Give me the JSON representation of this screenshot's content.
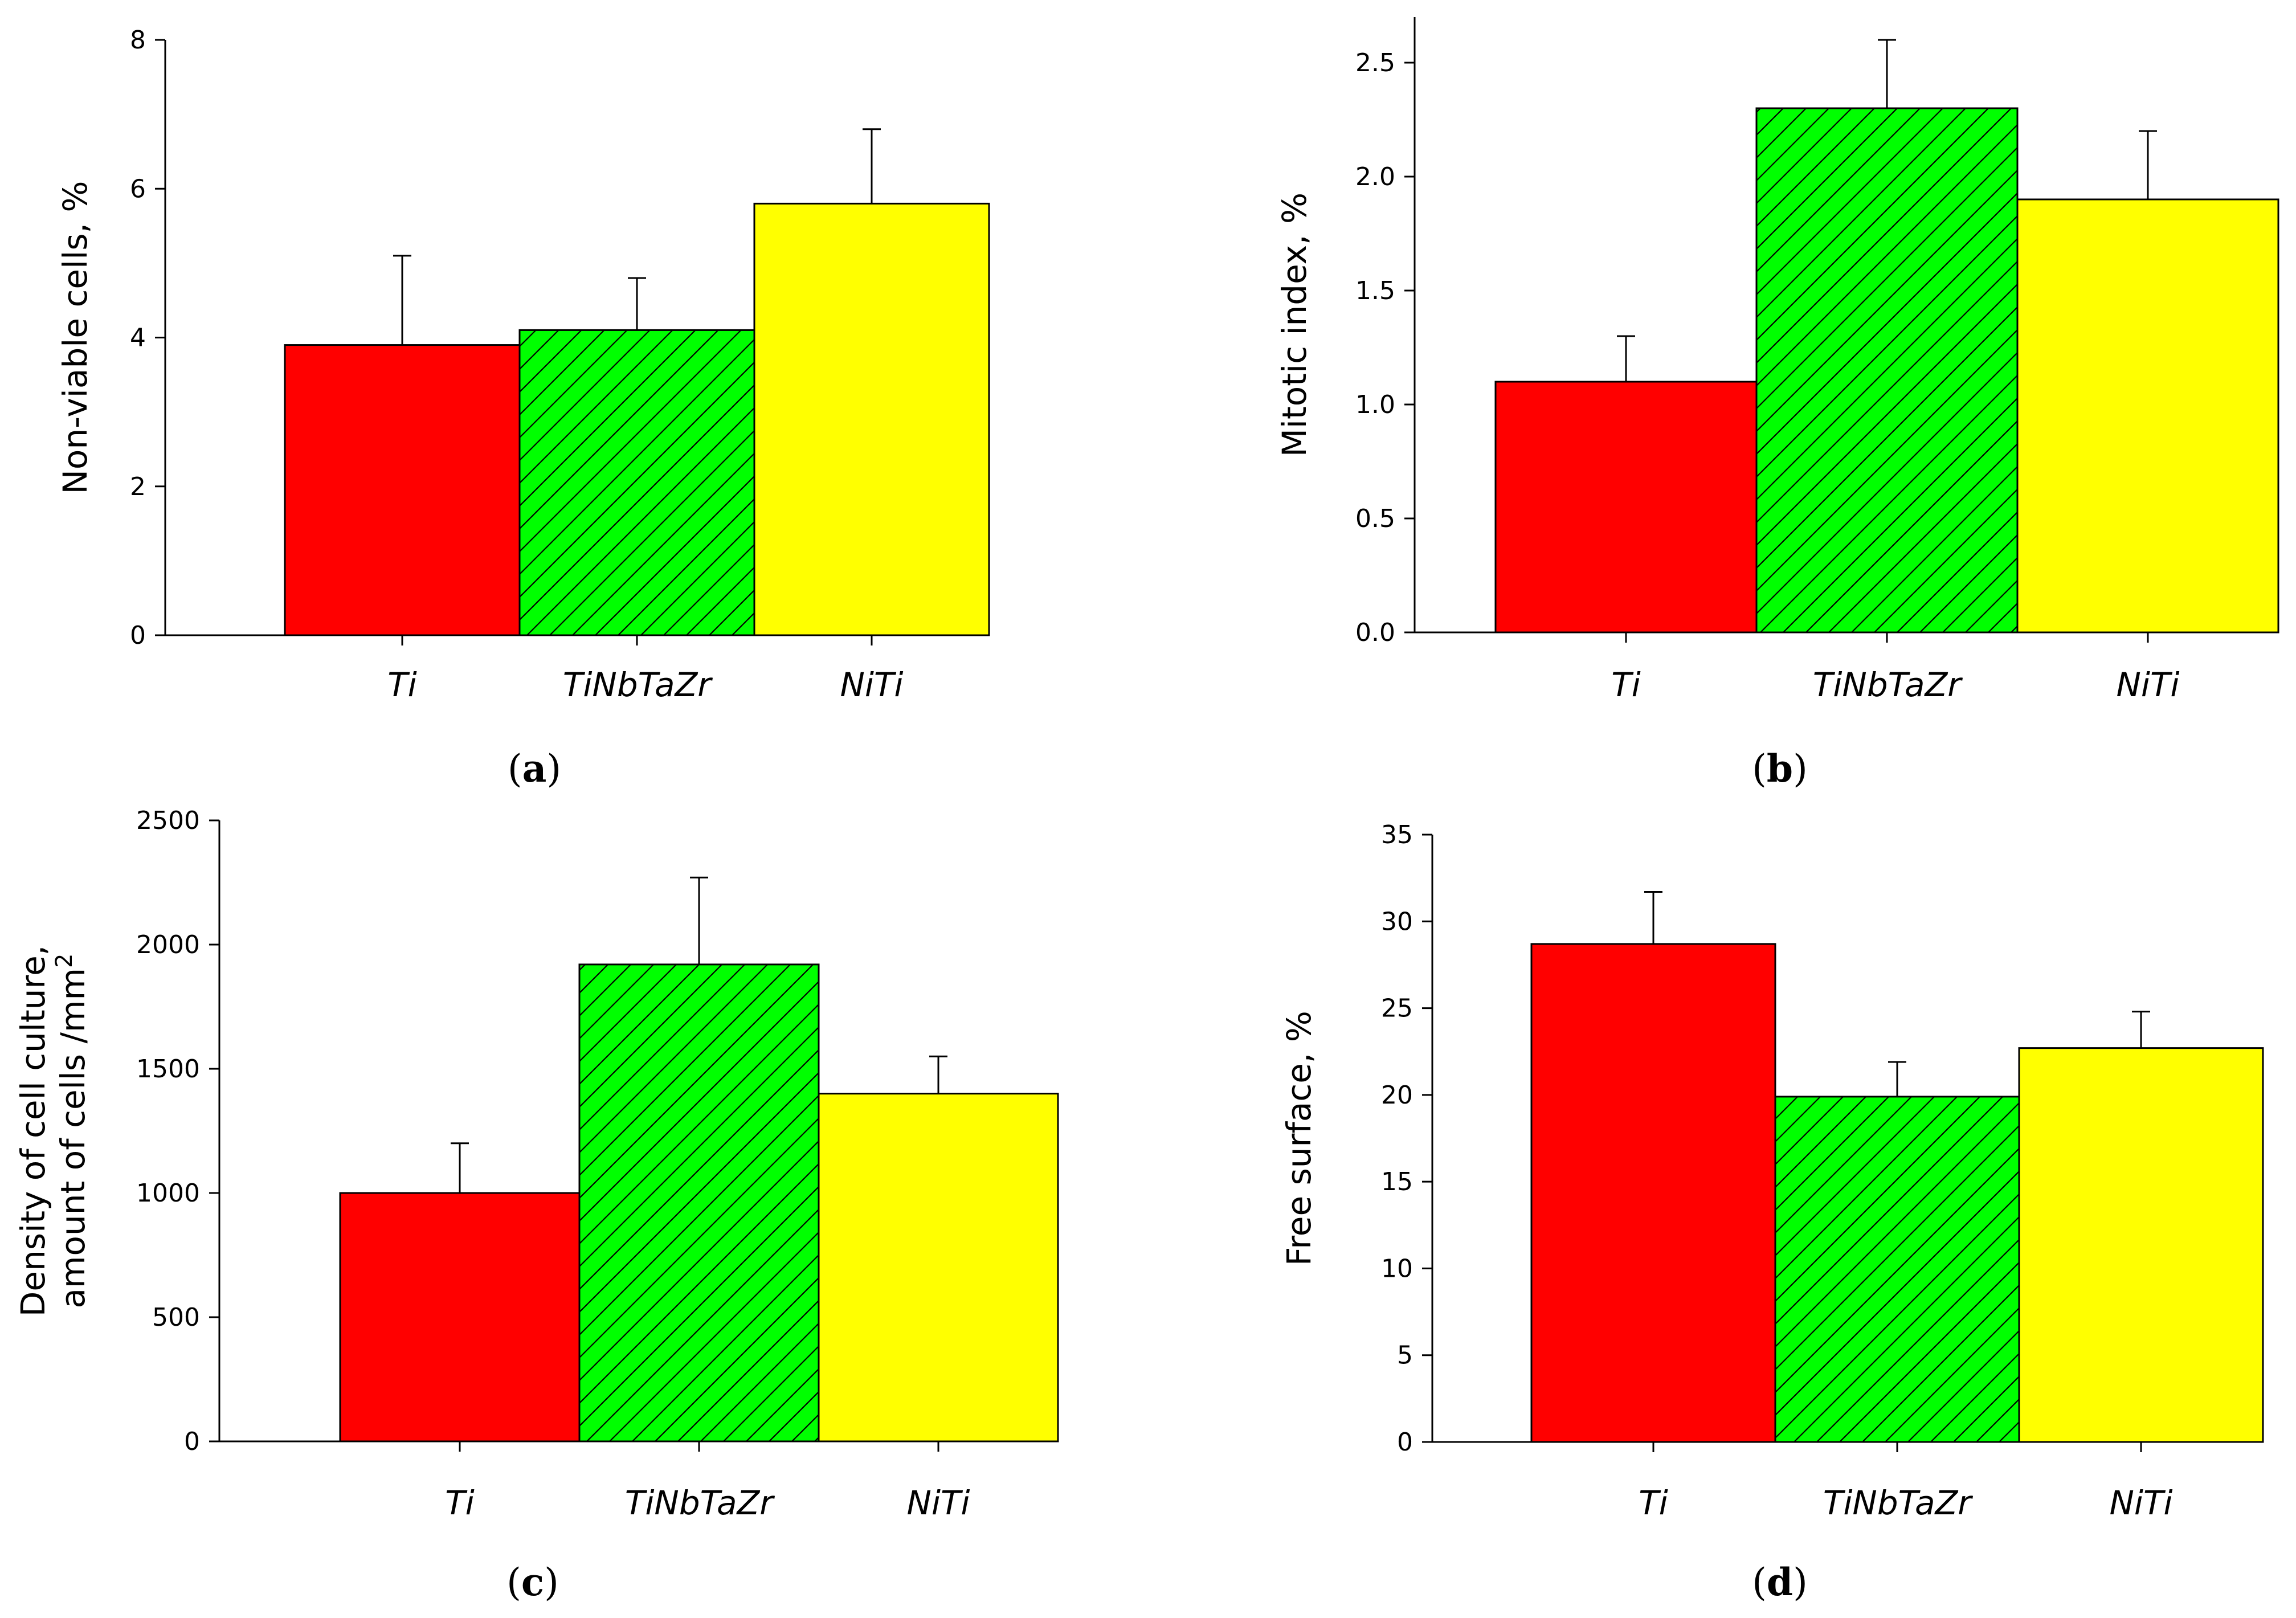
{
  "chart_data": [
    {
      "type": "bar",
      "panel": "a",
      "categories": [
        "Ti",
        "TiNbTaZr",
        "NiTi"
      ],
      "values": [
        3.9,
        4.1,
        5.8
      ],
      "errors": [
        1.2,
        0.7,
        1.0
      ],
      "ylabel": "Non-viable cells, %",
      "ylim": [
        0,
        8
      ],
      "yticks": [
        "0",
        "2",
        "4",
        "6",
        "8"
      ],
      "caption_open": "(",
      "caption_letter": "a",
      "caption_close": ")",
      "colors": [
        "#ff0000",
        "#00ff00",
        "#ffff00"
      ],
      "hatched": [
        false,
        true,
        false
      ]
    },
    {
      "type": "bar",
      "panel": "b",
      "categories": [
        "Ti",
        "TiNbTaZr",
        "NiTi"
      ],
      "values": [
        1.1,
        2.3,
        1.9
      ],
      "errors": [
        0.2,
        0.3,
        0.3
      ],
      "ylabel": "Mitotic index, %",
      "ylim": [
        0,
        2.7
      ],
      "yticks": [
        "0.0",
        "0.5",
        "1.0",
        "1.5",
        "2.0",
        "2.5"
      ],
      "caption_open": "(",
      "caption_letter": "b",
      "caption_close": ")",
      "colors": [
        "#ff0000",
        "#00ff00",
        "#ffff00"
      ],
      "hatched": [
        false,
        true,
        false
      ]
    },
    {
      "type": "bar",
      "panel": "c",
      "categories": [
        "Ti",
        "TiNbTaZr",
        "NiTi"
      ],
      "values": [
        1000,
        1920,
        1400
      ],
      "errors": [
        200,
        350,
        150
      ],
      "ylabel_line1": "Density of cell culture,",
      "ylabel_line2_pre": "amount of cells /mm",
      "ylabel_line2_sup": "2",
      "ylim": [
        0,
        2500
      ],
      "yticks": [
        "0",
        "500",
        "1000",
        "1500",
        "2000",
        "2500"
      ],
      "caption_open": "(",
      "caption_letter": "c",
      "caption_close": ")",
      "colors": [
        "#ff0000",
        "#00ff00",
        "#ffff00"
      ],
      "hatched": [
        false,
        true,
        false
      ]
    },
    {
      "type": "bar",
      "panel": "d",
      "categories": [
        "Ti",
        "TiNbTaZr",
        "NiTi"
      ],
      "values": [
        28.7,
        19.9,
        22.7
      ],
      "errors": [
        3.0,
        2.0,
        2.1
      ],
      "ylabel": "Free surface, %",
      "ylim": [
        0,
        35
      ],
      "yticks": [
        "0",
        "5",
        "10",
        "15",
        "20",
        "25",
        "30",
        "35"
      ],
      "caption_open": "(",
      "caption_letter": "d",
      "caption_close": ")",
      "colors": [
        "#ff0000",
        "#00ff00",
        "#ffff00"
      ],
      "hatched": [
        false,
        true,
        false
      ]
    }
  ]
}
